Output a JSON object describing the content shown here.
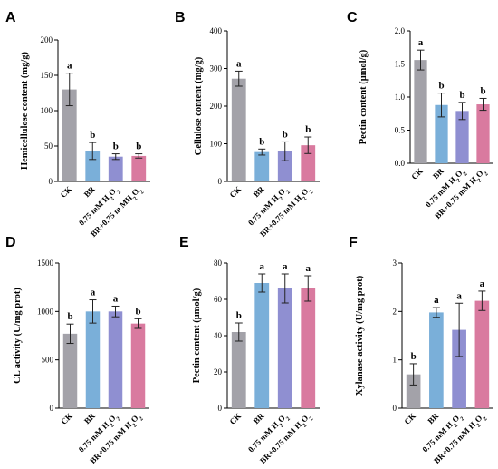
{
  "chart_data": [
    {
      "type": "bar",
      "panel": "A",
      "ylabel": "Hemicellulose content (mg/g)",
      "ylim": [
        0,
        200
      ],
      "yticks": [
        0,
        50,
        100,
        150,
        200
      ],
      "categories": [
        "CK",
        "BR",
        "0.75 mM H2O2",
        "BR+0.75 m MH2O2"
      ],
      "values": [
        130,
        43,
        35,
        36
      ],
      "errors": [
        23,
        12,
        4,
        3
      ],
      "significance": [
        "a",
        "b",
        "b",
        "b"
      ]
    },
    {
      "type": "bar",
      "panel": "B",
      "ylabel": "Cellulose content (mg/g)",
      "ylim": [
        0,
        400
      ],
      "yticks": [
        0,
        100,
        200,
        300,
        400
      ],
      "categories": [
        "CK",
        "BR",
        "0.75 mM H2O2",
        "BR+0.75 mM H2O2"
      ],
      "values": [
        273,
        78,
        80,
        96
      ],
      "errors": [
        20,
        8,
        25,
        22
      ],
      "significance": [
        "a",
        "b",
        "b",
        "b"
      ]
    },
    {
      "type": "bar",
      "panel": "C",
      "ylabel": "Pectin content (μmol/g)",
      "ylim": [
        0,
        2.0
      ],
      "yticks": [
        0.0,
        0.5,
        1.0,
        1.5,
        2.0
      ],
      "categories": [
        "CK",
        "BR",
        "0.75 mM H2O2",
        "BR+0.75 mM H2O2"
      ],
      "values": [
        1.56,
        0.88,
        0.79,
        0.89
      ],
      "errors": [
        0.15,
        0.18,
        0.13,
        0.09
      ],
      "significance": [
        "a",
        "b",
        "b",
        "b"
      ]
    },
    {
      "type": "bar",
      "panel": "D",
      "ylabel": "CL activity (U/mg prot)",
      "ylim": [
        0,
        1500
      ],
      "yticks": [
        0,
        500,
        1000,
        1500
      ],
      "categories": [
        "CK",
        "BR",
        "0.75 mM H2O2",
        "BR+0.75 mM H2O2"
      ],
      "values": [
        770,
        1000,
        1000,
        875
      ],
      "errors": [
        100,
        120,
        55,
        50
      ],
      "significance": [
        "b",
        "a",
        "a",
        "b"
      ]
    },
    {
      "type": "bar",
      "panel": "E",
      "ylabel": "Pectin content (μmol/g)",
      "ylim": [
        0,
        80
      ],
      "yticks": [
        0,
        20,
        40,
        60,
        80
      ],
      "categories": [
        "CK",
        "BR",
        "0.75 mM H2O2",
        "BR+0.75 mM H2O2"
      ],
      "values": [
        42,
        69,
        66,
        66
      ],
      "errors": [
        5,
        5,
        8,
        7
      ],
      "significance": [
        "b",
        "a",
        "a",
        "a"
      ]
    },
    {
      "type": "bar",
      "panel": "F",
      "ylabel": "Xylanase activity (U/mg prot)",
      "ylim": [
        0,
        3
      ],
      "yticks": [
        0,
        1,
        2,
        3
      ],
      "categories": [
        "CK",
        "BR",
        "0.75 mM H2O2",
        "BR+0.75 mM H2O2"
      ],
      "values": [
        0.7,
        1.98,
        1.62,
        2.22
      ],
      "errors": [
        0.22,
        0.1,
        0.55,
        0.2
      ],
      "significance": [
        "b",
        "a",
        "a",
        "a"
      ]
    }
  ],
  "colors": [
    "#a3a2a9",
    "#7aafd9",
    "#8f8fd1",
    "#d97a9f"
  ]
}
